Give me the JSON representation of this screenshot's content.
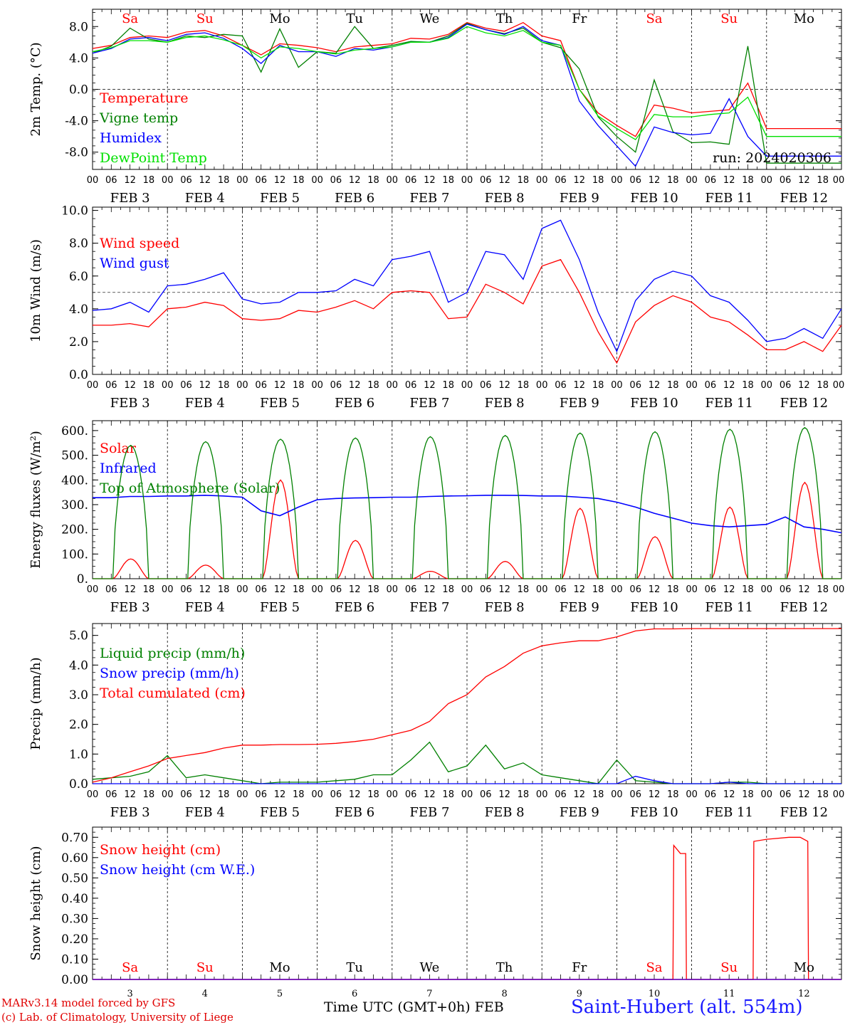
{
  "colors": {
    "red": "#ff0000",
    "green": "#008000",
    "blue": "#0000ff",
    "lime": "#00e000",
    "grid": "#000000",
    "dayname_red": "#ff0000"
  },
  "days": {
    "names": [
      "Sa",
      "Su",
      "Mo",
      "Tu",
      "We",
      "Th",
      "Fr",
      "Sa",
      "Su",
      "Mo"
    ],
    "weekend_names": [
      "Sa",
      "Su"
    ],
    "dates": [
      "FEB  3",
      "FEB  4",
      "FEB  5",
      "FEB  6",
      "FEB  7",
      "FEB  8",
      "FEB  9",
      "FEB 10",
      "FEB 11",
      "FEB 12"
    ],
    "numbers": [
      "3",
      "4",
      "5",
      "6",
      "7",
      "8",
      "9",
      "10",
      "11",
      "12"
    ],
    "hour_labels": [
      "00",
      "06",
      "12",
      "18"
    ],
    "end_label": "00"
  },
  "footer": {
    "model": "MARv3.14 model forced by GFS",
    "credit": "(c) Lab. of Climatology, University of Liege",
    "axis": "Time UTC (GMT+0h) FEB",
    "station": "Saint-Hubert (alt. 554m)"
  },
  "chart_data": [
    {
      "type": "line",
      "ylabel": "2m Temp. (°C)",
      "ylim": [
        -10.2,
        10.2
      ],
      "yticks": [
        -8,
        -4,
        0,
        4,
        8
      ],
      "ytick_labels": [
        "-8.0",
        "-4.0",
        "0.0",
        "4.0",
        "8.0"
      ],
      "refline": 0,
      "annotation": "run: 2024020306",
      "x_days": [
        0,
        0.25,
        0.5,
        0.75,
        1,
        1.25,
        1.5,
        1.75,
        2,
        2.25,
        2.5,
        2.75,
        3,
        3.25,
        3.5,
        3.75,
        4,
        4.25,
        4.5,
        4.75,
        5,
        5.25,
        5.5,
        5.75,
        6,
        6.25,
        6.5,
        6.75,
        7,
        7.25,
        7.5,
        7.75,
        8,
        8.25,
        8.5,
        8.75,
        9,
        9.25,
        9.5,
        9.75,
        10
      ],
      "series": [
        {
          "name": "Temperature",
          "color": "red",
          "values": [
            5.2,
            5.6,
            6.6,
            6.8,
            6.6,
            7.3,
            7.5,
            6.8,
            5.6,
            4.4,
            5.8,
            5.6,
            5.3,
            4.8,
            5.4,
            5.6,
            5.8,
            6.5,
            6.4,
            7.0,
            8.5,
            7.8,
            7.4,
            8.5,
            6.8,
            6.2,
            0.0,
            -3.0,
            -4.6,
            -6.0,
            -2.0,
            -2.4,
            -3.0,
            -2.8,
            -2.6,
            0.8,
            -5.0,
            -5.0,
            -5.0,
            -5.0,
            -5.0
          ]
        },
        {
          "name": "Vigne temp",
          "color": "green",
          "values": [
            4.6,
            5.5,
            7.8,
            6.4,
            6.0,
            6.8,
            6.6,
            7.0,
            6.8,
            2.2,
            7.7,
            2.8,
            4.8,
            4.6,
            8.0,
            5.2,
            5.6,
            6.1,
            6.0,
            6.8,
            8.4,
            7.6,
            7.1,
            7.8,
            6.0,
            5.3,
            2.6,
            -3.5,
            -6.0,
            -8.0,
            1.2,
            -5.4,
            -6.8,
            -6.7,
            -7.0,
            5.5,
            -9.4,
            -9.4,
            -9.4,
            -9.4,
            -9.4
          ]
        },
        {
          "name": "Humidex",
          "color": "blue",
          "values": [
            4.6,
            5.2,
            6.4,
            6.6,
            6.2,
            7.0,
            7.2,
            6.5,
            5.2,
            3.3,
            5.6,
            4.8,
            4.8,
            4.2,
            5.2,
            5.0,
            5.4,
            6.0,
            6.0,
            6.6,
            8.3,
            7.6,
            7.0,
            8.0,
            6.2,
            5.6,
            -1.5,
            -4.6,
            -7.2,
            -9.8,
            -4.8,
            -5.5,
            -5.8,
            -5.6,
            -1.2,
            -6.0,
            -8.5,
            -8.5,
            -8.5,
            -8.5,
            -8.5
          ]
        },
        {
          "name": "DewPoint Temp",
          "color": "lime",
          "values": [
            4.8,
            5.3,
            6.2,
            6.2,
            6.0,
            6.6,
            6.8,
            6.3,
            5.6,
            4.0,
            5.4,
            5.2,
            4.8,
            4.5,
            5.0,
            5.2,
            5.4,
            6.0,
            6.0,
            6.5,
            8.0,
            7.2,
            6.8,
            7.5,
            6.0,
            5.6,
            0.0,
            -3.4,
            -5.0,
            -6.4,
            -3.2,
            -3.5,
            -3.5,
            -3.2,
            -3.0,
            -1.0,
            -6.0,
            -6.0,
            -6.0,
            -6.0,
            -6.0
          ]
        }
      ]
    },
    {
      "type": "line",
      "ylabel": "10m Wind (m/s)",
      "ylim": [
        0.0,
        10.2
      ],
      "yticks": [
        0,
        2,
        4,
        6,
        8,
        10
      ],
      "ytick_labels": [
        "0.0",
        "2.0",
        "4.0",
        "6.0",
        "8.0",
        "10.0"
      ],
      "refline": 5,
      "x_days": [
        0,
        0.25,
        0.5,
        0.75,
        1,
        1.25,
        1.5,
        1.75,
        2,
        2.25,
        2.5,
        2.75,
        3,
        3.25,
        3.5,
        3.75,
        4,
        4.25,
        4.5,
        4.75,
        5,
        5.25,
        5.5,
        5.75,
        6,
        6.25,
        6.5,
        6.75,
        7,
        7.25,
        7.5,
        7.75,
        8,
        8.25,
        8.5,
        8.75,
        9,
        9.25,
        9.5,
        9.75,
        10
      ],
      "series": [
        {
          "name": "Wind speed",
          "color": "red",
          "values": [
            3.0,
            3.0,
            3.1,
            2.9,
            4.0,
            4.1,
            4.4,
            4.2,
            3.4,
            3.3,
            3.4,
            3.9,
            3.8,
            4.1,
            4.5,
            4.0,
            5.0,
            5.1,
            5.0,
            3.4,
            3.5,
            5.5,
            5.0,
            4.3,
            6.6,
            7.0,
            5.0,
            2.6,
            0.7,
            3.2,
            4.2,
            4.8,
            4.4,
            3.5,
            3.2,
            2.4,
            1.5,
            1.5,
            2.0,
            1.4,
            3.0
          ]
        },
        {
          "name": "Wind gust",
          "color": "blue",
          "values": [
            3.9,
            4.0,
            4.4,
            3.8,
            5.4,
            5.5,
            5.8,
            6.2,
            4.6,
            4.3,
            4.4,
            5.0,
            5.0,
            5.1,
            5.8,
            5.4,
            7.0,
            7.2,
            7.5,
            4.4,
            5.0,
            7.5,
            7.3,
            5.8,
            8.9,
            9.4,
            7.0,
            3.8,
            1.4,
            4.5,
            5.8,
            6.3,
            6.0,
            4.8,
            4.4,
            3.3,
            2.0,
            2.2,
            2.8,
            2.2,
            4.0
          ]
        }
      ]
    },
    {
      "type": "line",
      "ylabel": "Energy fluxes (W/m²)",
      "ylim": [
        0,
        640
      ],
      "yticks": [
        0,
        100,
        200,
        300,
        400,
        500,
        600
      ],
      "ytick_labels": [
        "0.",
        "100.",
        "200.",
        "300.",
        "400.",
        "500.",
        "600."
      ],
      "days_count": 10,
      "daylight_hours": [
        6.5,
        18.0
      ],
      "series": [
        {
          "name": "Solar",
          "color": "red",
          "daily_peak_values": [
            80,
            55,
            400,
            155,
            30,
            70,
            285,
            170,
            290,
            390
          ]
        },
        {
          "name": "Infrared",
          "color": "blue",
          "x_days": [
            0,
            0.25,
            0.5,
            0.75,
            1,
            1.25,
            1.5,
            1.75,
            2,
            2.25,
            2.5,
            2.75,
            3,
            3.25,
            3.5,
            3.75,
            4,
            4.25,
            4.5,
            4.75,
            5,
            5.25,
            5.5,
            5.75,
            6,
            6.25,
            6.5,
            6.75,
            7,
            7.25,
            7.5,
            7.75,
            8,
            8.25,
            8.5,
            8.75,
            9,
            9.25,
            9.5,
            9.75,
            10
          ],
          "values": [
            328,
            328,
            333,
            333,
            335,
            335,
            338,
            335,
            330,
            275,
            255,
            290,
            320,
            325,
            327,
            328,
            330,
            330,
            333,
            335,
            336,
            338,
            338,
            337,
            335,
            335,
            330,
            325,
            310,
            290,
            265,
            245,
            225,
            215,
            210,
            215,
            220,
            250,
            210,
            200,
            186
          ]
        },
        {
          "name": "Top of Atmosphere (Solar)",
          "color": "green",
          "daily_peak_values": [
            540,
            555,
            565,
            570,
            575,
            580,
            590,
            595,
            605,
            612
          ]
        }
      ]
    },
    {
      "type": "line",
      "ylabel": "Precip (mm/h)",
      "ylim": [
        0.0,
        5.4
      ],
      "yticks": [
        0,
        1,
        2,
        3,
        4,
        5
      ],
      "ytick_labels": [
        "0.0",
        "1.0",
        "2.0",
        "3.0",
        "4.0",
        "5.0"
      ],
      "x_days": [
        0,
        0.25,
        0.5,
        0.75,
        1,
        1.25,
        1.5,
        1.75,
        2,
        2.25,
        2.5,
        2.75,
        3,
        3.25,
        3.5,
        3.75,
        4,
        4.25,
        4.5,
        4.75,
        5,
        5.25,
        5.5,
        5.75,
        6,
        6.25,
        6.5,
        6.75,
        7,
        7.25,
        7.5,
        7.75,
        8,
        8.25,
        8.5,
        8.75,
        9,
        9.25,
        9.5,
        9.75,
        10
      ],
      "series": [
        {
          "name": "Liquid precip (mm/h)",
          "color": "green",
          "values": [
            0.15,
            0.2,
            0.25,
            0.4,
            0.95,
            0.2,
            0.3,
            0.2,
            0.1,
            0.0,
            0.05,
            0.05,
            0.05,
            0.1,
            0.15,
            0.3,
            0.3,
            0.8,
            1.4,
            0.4,
            0.6,
            1.3,
            0.5,
            0.7,
            0.3,
            0.2,
            0.1,
            0.0,
            0.8,
            0.1,
            0.05,
            0.0,
            0.0,
            0.0,
            0.05,
            0.05,
            0.0,
            0.0,
            0.0,
            0.0,
            0.0
          ]
        },
        {
          "name": "Snow precip (mm/h)",
          "color": "blue",
          "values": [
            0,
            0,
            0,
            0,
            0,
            0,
            0,
            0,
            0,
            0,
            0,
            0,
            0,
            0,
            0,
            0,
            0,
            0,
            0,
            0,
            0,
            0,
            0,
            0,
            0,
            0,
            0,
            0,
            0.0,
            0.25,
            0.1,
            0.0,
            0,
            0,
            0.05,
            0,
            0,
            0,
            0,
            0,
            0
          ]
        },
        {
          "name": "Total cumulated (cm)",
          "color": "red",
          "values": [
            0.05,
            0.2,
            0.4,
            0.6,
            0.85,
            0.95,
            1.05,
            1.2,
            1.3,
            1.3,
            1.32,
            1.32,
            1.33,
            1.36,
            1.42,
            1.5,
            1.65,
            1.8,
            2.1,
            2.7,
            3.0,
            3.6,
            3.95,
            4.4,
            4.65,
            4.75,
            4.82,
            4.82,
            4.95,
            5.15,
            5.22,
            5.22,
            5.23,
            5.23,
            5.23,
            5.23,
            5.23,
            5.23,
            5.23,
            5.23,
            5.23
          ]
        }
      ]
    },
    {
      "type": "line",
      "ylabel": "Snow height (cm)",
      "ylim": [
        0.0,
        0.75
      ],
      "yticks": [
        0,
        0.1,
        0.2,
        0.3,
        0.4,
        0.5,
        0.6,
        0.7
      ],
      "ytick_labels": [
        "0.00",
        "0.10",
        "0.20",
        "0.30",
        "0.40",
        "0.50",
        "0.60",
        "0.70"
      ],
      "series": [
        {
          "name": "Snow height (cm)",
          "color": "red",
          "x_days": [
            0,
            7.75,
            7.76,
            7.85,
            7.92,
            7.93,
            8.82,
            8.83,
            9.0,
            9.3,
            9.45,
            9.55,
            9.56,
            10
          ],
          "values": [
            0,
            0,
            0.66,
            0.62,
            0.62,
            0,
            0,
            0.68,
            0.69,
            0.7,
            0.7,
            0.68,
            0,
            0
          ]
        },
        {
          "name": "Snow height (cm W.E.)",
          "color": "blue",
          "x_days": [
            0,
            10
          ],
          "values": [
            0,
            0
          ]
        }
      ]
    }
  ]
}
